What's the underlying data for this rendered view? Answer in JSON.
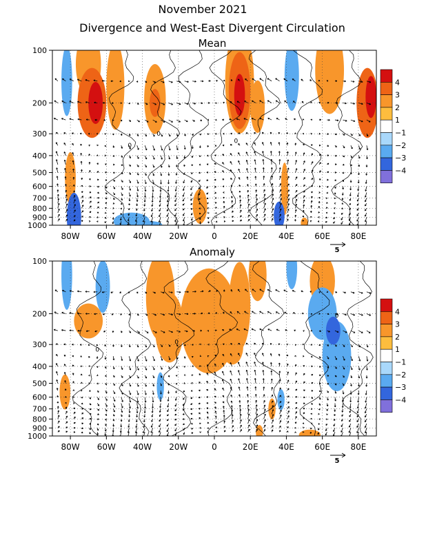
{
  "title": "November 2021",
  "subtitle": "Divergence and West-East Divergent Circulation",
  "colors": {
    "pos": [
      "#ffffff",
      "#fdbd3e",
      "#f8962b",
      "#ee6416",
      "#d41010"
    ],
    "neg": [
      "#ffffff",
      "#a9d8fb",
      "#5aaaf0",
      "#3366dd",
      "#8070db"
    ]
  },
  "chart_data": [
    {
      "type": "heatmap",
      "panel_title": "Mean",
      "x_ticks": [
        {
          "v": -80,
          "label": "80W"
        },
        {
          "v": -60,
          "label": "60W"
        },
        {
          "v": -40,
          "label": "40W"
        },
        {
          "v": -20,
          "label": "20W"
        },
        {
          "v": 0,
          "label": "0"
        },
        {
          "v": 20,
          "label": "20E"
        },
        {
          "v": 40,
          "label": "40E"
        },
        {
          "v": 60,
          "label": "60E"
        },
        {
          "v": 80,
          "label": "80E"
        }
      ],
      "y_ticks": [
        {
          "v": 100,
          "label": "100"
        },
        {
          "v": 200,
          "label": "200"
        },
        {
          "v": 300,
          "label": "300"
        },
        {
          "v": 400,
          "label": "400"
        },
        {
          "v": 500,
          "label": "500"
        },
        {
          "v": 600,
          "label": "600"
        },
        {
          "v": 700,
          "label": "700"
        },
        {
          "v": 800,
          "label": "800"
        },
        {
          "v": 900,
          "label": "900"
        },
        {
          "v": 1000,
          "label": "1000"
        }
      ],
      "xlim": [
        -90,
        90
      ],
      "ylim": [
        1000,
        100
      ],
      "y_scale": "log",
      "colorbar": {
        "levels": [
          -4,
          -3,
          -2,
          -1,
          1,
          2,
          3,
          4
        ]
      },
      "contour_labels": [
        {
          "lon": -47,
          "p": 350,
          "text": "0"
        },
        {
          "lon": -31,
          "p": 300,
          "text": "0"
        },
        {
          "lon": 12,
          "p": 330,
          "text": "0"
        }
      ],
      "reference_arrow": {
        "label": "5"
      },
      "blobs": [
        {
          "lon": -82,
          "p": 150,
          "rx": 3,
          "ry": 0.2,
          "v": -2
        },
        {
          "lon": -78,
          "p": 900,
          "rx": 4,
          "ry": 0.14,
          "v": -3
        },
        {
          "lon": -70,
          "p": 120,
          "rx": 7,
          "ry": 0.18,
          "v": 2
        },
        {
          "lon": -68,
          "p": 200,
          "rx": 8,
          "ry": 0.2,
          "v": 3
        },
        {
          "lon": -66,
          "p": 200,
          "rx": 4,
          "ry": 0.12,
          "v": 4
        },
        {
          "lon": -55,
          "p": 160,
          "rx": 5,
          "ry": 0.25,
          "v": 2
        },
        {
          "lon": -46,
          "p": 950,
          "rx": 10,
          "ry": 0.05,
          "v": -2
        },
        {
          "lon": -37,
          "p": 990,
          "rx": 8,
          "ry": 0.02,
          "v": -2
        },
        {
          "lon": -33,
          "p": 190,
          "rx": 6,
          "ry": 0.2,
          "v": 2
        },
        {
          "lon": -33,
          "p": 200,
          "rx": 3,
          "ry": 0.08,
          "v": 3
        },
        {
          "lon": -80,
          "p": 540,
          "rx": 3,
          "ry": 0.15,
          "v": 2
        },
        {
          "lon": -8,
          "p": 780,
          "rx": 4,
          "ry": 0.1,
          "v": 2
        },
        {
          "lon": 14,
          "p": 150,
          "rx": 8,
          "ry": 0.3,
          "v": 2
        },
        {
          "lon": 14,
          "p": 170,
          "rx": 6,
          "ry": 0.22,
          "v": 3
        },
        {
          "lon": 14,
          "p": 180,
          "rx": 3,
          "ry": 0.12,
          "v": 4
        },
        {
          "lon": 24,
          "p": 210,
          "rx": 4,
          "ry": 0.15,
          "v": 2
        },
        {
          "lon": 36,
          "p": 880,
          "rx": 3,
          "ry": 0.08,
          "v": -3
        },
        {
          "lon": 39,
          "p": 620,
          "rx": 2,
          "ry": 0.15,
          "v": 2
        },
        {
          "lon": 43,
          "p": 140,
          "rx": 4,
          "ry": 0.2,
          "v": -2
        },
        {
          "lon": 50,
          "p": 970,
          "rx": 2,
          "ry": 0.03,
          "v": 2
        },
        {
          "lon": 64,
          "p": 130,
          "rx": 8,
          "ry": 0.25,
          "v": 2
        },
        {
          "lon": 85,
          "p": 200,
          "rx": 6,
          "ry": 0.2,
          "v": 3
        },
        {
          "lon": 87,
          "p": 185,
          "rx": 3,
          "ry": 0.12,
          "v": 4
        }
      ]
    },
    {
      "type": "heatmap",
      "panel_title": "Anomaly",
      "x_ticks": [
        {
          "v": -80,
          "label": "80W"
        },
        {
          "v": -60,
          "label": "60W"
        },
        {
          "v": -40,
          "label": "40W"
        },
        {
          "v": -20,
          "label": "20W"
        },
        {
          "v": 0,
          "label": "0"
        },
        {
          "v": 20,
          "label": "20E"
        },
        {
          "v": 40,
          "label": "40E"
        },
        {
          "v": 60,
          "label": "60E"
        },
        {
          "v": 80,
          "label": "80E"
        }
      ],
      "y_ticks": [
        {
          "v": 100,
          "label": "100"
        },
        {
          "v": 200,
          "label": "200"
        },
        {
          "v": 300,
          "label": "300"
        },
        {
          "v": 400,
          "label": "400"
        },
        {
          "v": 500,
          "label": "500"
        },
        {
          "v": 600,
          "label": "600"
        },
        {
          "v": 700,
          "label": "700"
        },
        {
          "v": 800,
          "label": "800"
        },
        {
          "v": 900,
          "label": "900"
        },
        {
          "v": 1000,
          "label": "1000"
        }
      ],
      "xlim": [
        -90,
        90
      ],
      "ylim": [
        1000,
        100
      ],
      "y_scale": "log",
      "colorbar": {
        "levels": [
          -4,
          -3,
          -2,
          -1,
          1,
          2,
          3,
          4
        ]
      },
      "contour_labels": [
        {
          "lon": -65,
          "p": 320,
          "text": "0"
        },
        {
          "lon": -21,
          "p": 290,
          "text": "0"
        },
        {
          "lon": 68,
          "p": 205,
          "text": "0"
        }
      ],
      "reference_arrow": {
        "label": "5"
      },
      "blobs": [
        {
          "lon": -82,
          "p": 120,
          "rx": 3,
          "ry": 0.2,
          "v": -2
        },
        {
          "lon": -62,
          "p": 140,
          "rx": 4,
          "ry": 0.15,
          "v": -2
        },
        {
          "lon": -70,
          "p": 220,
          "rx": 8,
          "ry": 0.1,
          "v": 2
        },
        {
          "lon": -83,
          "p": 560,
          "rx": 3,
          "ry": 0.1,
          "v": 2
        },
        {
          "lon": -30,
          "p": 160,
          "rx": 8,
          "ry": 0.25,
          "v": 2
        },
        {
          "lon": -25,
          "p": 240,
          "rx": 8,
          "ry": 0.2,
          "v": 2
        },
        {
          "lon": -3,
          "p": 220,
          "rx": 16,
          "ry": 0.3,
          "v": 2
        },
        {
          "lon": 14,
          "p": 180,
          "rx": 6,
          "ry": 0.25,
          "v": 2
        },
        {
          "lon": 10,
          "p": 310,
          "rx": 6,
          "ry": 0.1,
          "v": 2
        },
        {
          "lon": -30,
          "p": 520,
          "rx": 2,
          "ry": 0.08,
          "v": -2
        },
        {
          "lon": 24,
          "p": 120,
          "rx": 5,
          "ry": 0.15,
          "v": 2
        },
        {
          "lon": 43,
          "p": 110,
          "rx": 3,
          "ry": 0.12,
          "v": -2
        },
        {
          "lon": 60,
          "p": 130,
          "rx": 7,
          "ry": 0.15,
          "v": 2
        },
        {
          "lon": 60,
          "p": 200,
          "rx": 8,
          "ry": 0.15,
          "v": -2
        },
        {
          "lon": 66,
          "p": 250,
          "rx": 4,
          "ry": 0.08,
          "v": -3
        },
        {
          "lon": 68,
          "p": 350,
          "rx": 8,
          "ry": 0.2,
          "v": -2
        },
        {
          "lon": 37,
          "p": 620,
          "rx": 2,
          "ry": 0.06,
          "v": -2
        },
        {
          "lon": 32,
          "p": 700,
          "rx": 2,
          "ry": 0.06,
          "v": 2
        },
        {
          "lon": 53,
          "p": 985,
          "rx": 6,
          "ry": 0.03,
          "v": 2
        },
        {
          "lon": 25,
          "p": 950,
          "rx": 2,
          "ry": 0.04,
          "v": 2
        }
      ]
    }
  ]
}
